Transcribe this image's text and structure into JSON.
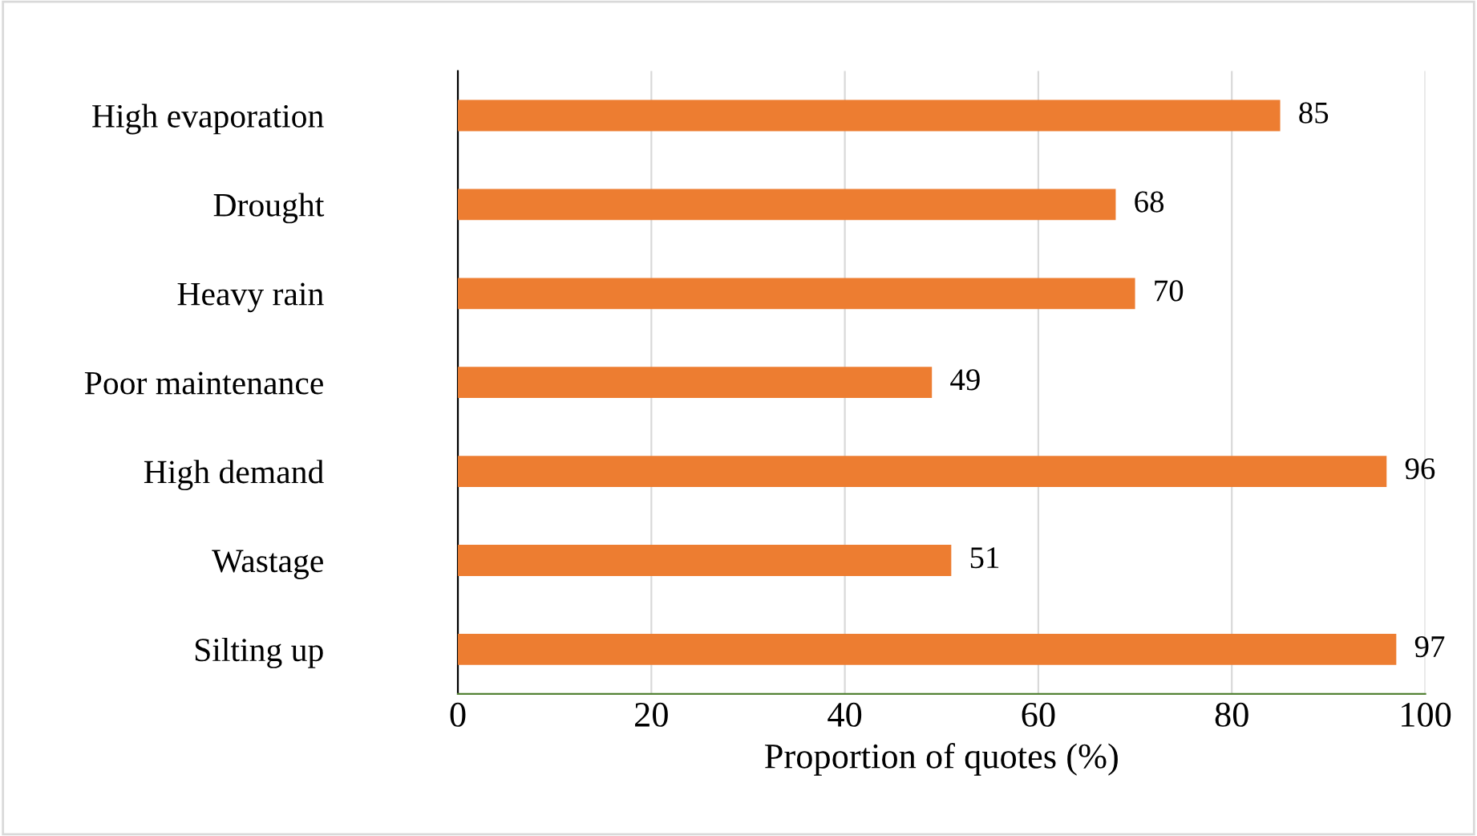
{
  "chart_data": {
    "type": "bar",
    "orientation": "horizontal",
    "xlabel": "Proportion of quotes (%)",
    "categories": [
      "High evaporation",
      "Drought",
      "Heavy rain",
      "Poor maintenance",
      "High demand",
      "Wastage",
      "Silting up"
    ],
    "values": [
      85,
      68,
      70,
      49,
      96,
      51,
      97
    ],
    "color": "#ed7d31",
    "xlim": [
      0,
      100
    ],
    "xticks": [
      0,
      20,
      40,
      60,
      80,
      100
    ],
    "grid": "x",
    "data_labels": true,
    "legend": false
  }
}
